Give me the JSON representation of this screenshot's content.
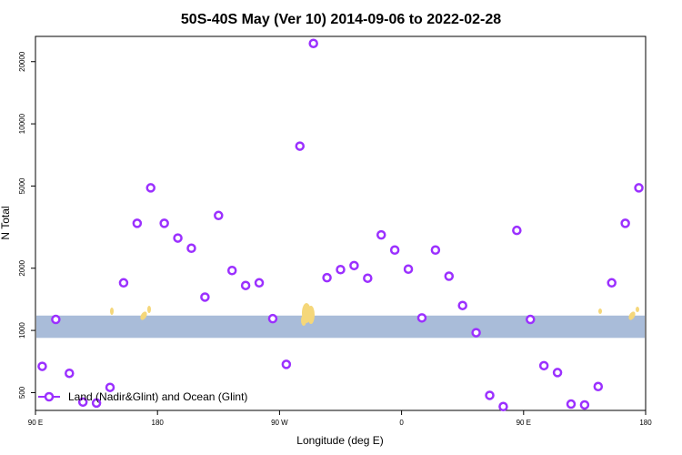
{
  "chart_data": {
    "type": "scatter",
    "title": "50S-40S May (Ver 10)   2014-09-06 to 2022-02-28",
    "xlabel": "Longitude (deg E)",
    "ylabel": "N Total",
    "x_ticks": [
      {
        "value": 0,
        "label": "90 E"
      },
      {
        "value": 90,
        "label": "180"
      },
      {
        "value": 180,
        "label": "90 W"
      },
      {
        "value": 270,
        "label": "0"
      },
      {
        "value": 360,
        "label": "90 E"
      },
      {
        "value": 450,
        "label": "180"
      }
    ],
    "y_ticks": [
      500,
      1000,
      2000,
      5000,
      10000,
      20000
    ],
    "xlim": [
      0,
      450
    ],
    "ylim_log": [
      410,
      26500
    ],
    "y_scale": "log",
    "band": {
      "ymin": 920,
      "ymax": 1180,
      "color": "#a9bcd9"
    },
    "land_color": "#f5d77a",
    "marker_color": "#9b30ff",
    "legend": {
      "label": "Land (Nadir&Glint) and Ocean (Glint)",
      "position": "bottom-left"
    },
    "series": [
      {
        "name": "Land (Nadir&Glint) and Ocean (Glint)",
        "x": [
          5,
          15,
          25,
          35,
          45,
          55,
          65,
          75,
          85,
          95,
          105,
          115,
          125,
          135,
          145,
          155,
          165,
          175,
          185,
          195,
          205,
          215,
          225,
          235,
          245,
          255,
          265,
          275,
          285,
          295,
          305,
          315,
          325,
          335,
          345,
          355,
          365,
          375,
          385,
          395,
          405,
          415,
          425,
          435,
          445
        ],
        "y": [
          670,
          1130,
          620,
          450,
          445,
          530,
          1700,
          3300,
          4900,
          3300,
          2800,
          2500,
          1450,
          3600,
          1950,
          1650,
          1700,
          1140,
          685,
          7800,
          24500,
          1800,
          1970,
          2060,
          1790,
          2900,
          2450,
          1980,
          1150,
          2450,
          1830,
          1320,
          975,
          485,
          428,
          3050,
          1130,
          675,
          625,
          440,
          436,
          535,
          1700,
          3300,
          4900
        ]
      }
    ]
  }
}
